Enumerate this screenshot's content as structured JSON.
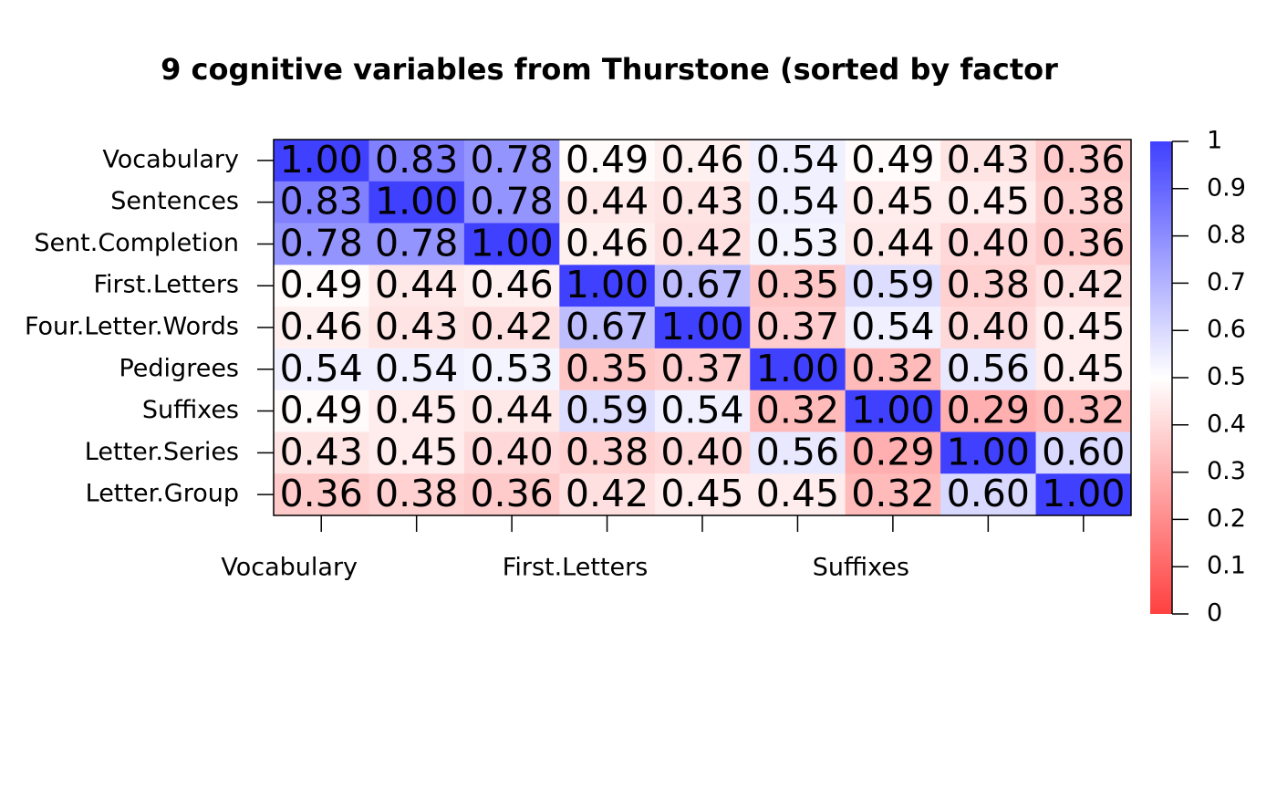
{
  "chart_data": {
    "type": "heatmap",
    "title": "9 cognitive variables from Thurstone (sorted by factor",
    "rows": [
      "Vocabulary",
      "Sentences",
      "Sent.Completion",
      "First.Letters",
      "Four.Letter.Words",
      "Pedigrees",
      "Suffixes",
      "Letter.Series",
      "Letter.Group"
    ],
    "columns": [
      "Vocabulary",
      null,
      null,
      "First.Letters",
      null,
      null,
      "Suffixes",
      null,
      null
    ],
    "values": [
      [
        1.0,
        0.83,
        0.78,
        0.49,
        0.46,
        0.54,
        0.49,
        0.43,
        0.36
      ],
      [
        0.83,
        1.0,
        0.78,
        0.44,
        0.43,
        0.54,
        0.45,
        0.45,
        0.38
      ],
      [
        0.78,
        0.78,
        1.0,
        0.46,
        0.42,
        0.53,
        0.44,
        0.4,
        0.36
      ],
      [
        0.49,
        0.44,
        0.46,
        1.0,
        0.67,
        0.35,
        0.59,
        0.38,
        0.42
      ],
      [
        0.46,
        0.43,
        0.42,
        0.67,
        1.0,
        0.37,
        0.54,
        0.4,
        0.45
      ],
      [
        0.54,
        0.54,
        0.53,
        0.35,
        0.37,
        1.0,
        0.32,
        0.56,
        0.45
      ],
      [
        0.49,
        0.45,
        0.44,
        0.59,
        0.54,
        0.32,
        1.0,
        0.29,
        0.32
      ],
      [
        0.43,
        0.45,
        0.4,
        0.38,
        0.4,
        0.56,
        0.29,
        1.0,
        0.6
      ],
      [
        0.36,
        0.38,
        0.36,
        0.42,
        0.45,
        0.45,
        0.32,
        0.6,
        1.0
      ]
    ],
    "value_labels": [
      [
        "1.00",
        "0.83",
        "0.78",
        "0.49",
        "0.46",
        "0.54",
        "0.49",
        "0.43",
        "0.36"
      ],
      [
        "0.83",
        "1.00",
        "0.78",
        "0.44",
        "0.43",
        "0.54",
        "0.45",
        "0.45",
        "0.38"
      ],
      [
        "0.78",
        "0.78",
        "1.00",
        "0.46",
        "0.42",
        "0.53",
        "0.44",
        "0.40",
        "0.36"
      ],
      [
        "0.49",
        "0.44",
        "0.46",
        "1.00",
        "0.67",
        "0.35",
        "0.59",
        "0.38",
        "0.42"
      ],
      [
        "0.46",
        "0.43",
        "0.42",
        "0.67",
        "1.00",
        "0.37",
        "0.54",
        "0.40",
        "0.45"
      ],
      [
        "0.54",
        "0.54",
        "0.53",
        "0.35",
        "0.37",
        "1.00",
        "0.32",
        "0.56",
        "0.45"
      ],
      [
        "0.49",
        "0.45",
        "0.44",
        "0.59",
        "0.54",
        "0.32",
        "1.00",
        "0.29",
        "0.32"
      ],
      [
        "0.43",
        "0.45",
        "0.40",
        "0.38",
        "0.40",
        "0.56",
        "0.29",
        "1.00",
        "0.60"
      ],
      [
        "0.36",
        "0.38",
        "0.36",
        "0.42",
        "0.45",
        "0.45",
        "0.32",
        "0.60",
        "1.00"
      ]
    ],
    "colors": [
      "#ff4040",
      "#ffffff",
      "#4040ff"
    ],
    "colorbar_lim": [
      0,
      1
    ],
    "colorbar_ticks": [
      0,
      0.1,
      0.2,
      0.3,
      0.4,
      0.5,
      0.6,
      0.7,
      0.8,
      0.9,
      1
    ]
  }
}
